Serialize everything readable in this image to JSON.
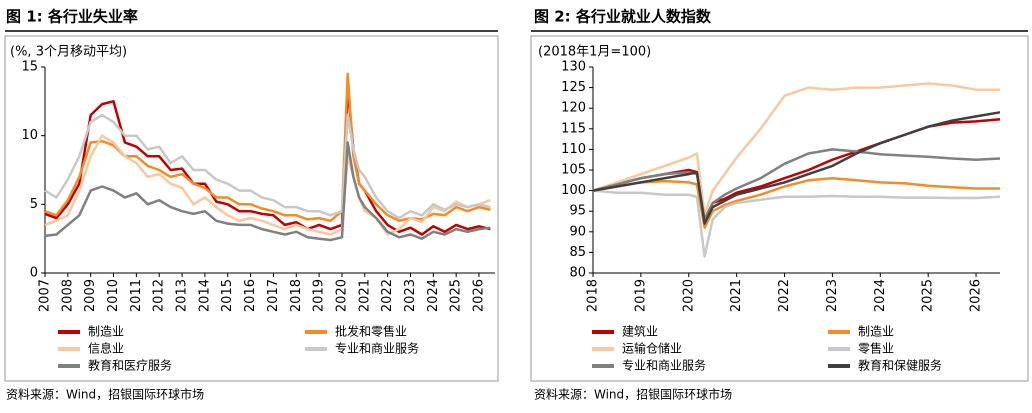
{
  "chart_data": [
    {
      "type": "line",
      "title": "图 1: 各行业失业率",
      "subtitle": "(%, 3个月移动平均)",
      "source": "资料来源：Wind，招银国际环球市场",
      "x": [
        2007,
        2007.5,
        2008,
        2008.5,
        2009,
        2009.5,
        2010,
        2010.5,
        2011,
        2011.5,
        2012,
        2012.5,
        2013,
        2013.5,
        2014,
        2014.5,
        2015,
        2015.5,
        2016,
        2016.5,
        2017,
        2017.5,
        2018,
        2018.5,
        2019,
        2019.5,
        2020,
        2020.25,
        2020.5,
        2020.75,
        2021,
        2021.5,
        2022,
        2022.5,
        2023,
        2023.5,
        2024,
        2024.5,
        2025,
        2025.5,
        2026,
        2026.5
      ],
      "xlim": [
        2007,
        2026.7
      ],
      "xticks": [
        2007,
        2008,
        2009,
        2010,
        2011,
        2012,
        2013,
        2014,
        2015,
        2016,
        2017,
        2018,
        2019,
        2020,
        2021,
        2022,
        2023,
        2024,
        2025,
        2026
      ],
      "ylim": [
        0,
        15
      ],
      "yticks": [
        0,
        5,
        10,
        15
      ],
      "series": [
        {
          "name": "制造业",
          "color": "#c00000",
          "values": [
            4.3,
            4.0,
            5.0,
            6.5,
            11.5,
            12.3,
            12.5,
            9.5,
            9.2,
            8.5,
            8.5,
            7.5,
            7.6,
            6.5,
            6.5,
            5.2,
            5.0,
            4.5,
            4.5,
            4.3,
            4.2,
            3.5,
            3.7,
            3.2,
            3.5,
            3.2,
            3.5,
            13.5,
            9,
            6.5,
            6.0,
            4.5,
            3.5,
            3.0,
            3.3,
            2.8,
            3.4,
            3.0,
            3.5,
            3.2,
            3.4,
            3.2
          ]
        },
        {
          "name": "批发和零售业",
          "color": "#f28c28",
          "values": [
            4.5,
            4.2,
            5.3,
            7,
            9.5,
            9.6,
            9.3,
            8.5,
            8.5,
            7.8,
            7.5,
            7,
            7.2,
            6.5,
            6.2,
            5.5,
            5.5,
            5,
            5,
            4.7,
            4.5,
            4.2,
            4.2,
            3.9,
            4,
            3.8,
            4.5,
            14.5,
            8.5,
            6.5,
            6,
            5,
            4.2,
            3.8,
            4,
            3.9,
            4.3,
            4.2,
            4.8,
            4.5,
            4.8,
            4.6
          ]
        },
        {
          "name": "信息业",
          "color": "#f8c8a0",
          "values": [
            3.5,
            3.8,
            4.2,
            6,
            8.5,
            10,
            9.5,
            8.5,
            8,
            7,
            7.2,
            6.5,
            6.2,
            5,
            5.5,
            4.8,
            4.2,
            3.8,
            4,
            3.8,
            3.5,
            3.2,
            3.5,
            3.2,
            3,
            2.8,
            3.2,
            8.5,
            7,
            5.5,
            4.5,
            4.0,
            2.8,
            3.2,
            4,
            3.7,
            4.8,
            4.5,
            5.2,
            4.8,
            5,
            5.3
          ]
        },
        {
          "name": "专业和商业服务",
          "color": "#c8c8c8",
          "values": [
            6,
            5.5,
            6.8,
            8.5,
            11,
            11.5,
            11,
            10,
            10,
            9,
            9.2,
            8,
            8.5,
            7.5,
            7.5,
            6.8,
            6.5,
            6,
            6,
            5.5,
            5.3,
            4.8,
            4.8,
            4.5,
            4.5,
            4.2,
            4.5,
            11.5,
            9,
            7.5,
            7,
            5.5,
            4.5,
            4.0,
            4.5,
            4.2,
            5,
            4.6,
            5,
            4.8,
            5,
            4.8
          ]
        },
        {
          "name": "教育和医疗服务",
          "color": "#808080",
          "values": [
            2.7,
            2.8,
            3.5,
            4.2,
            6,
            6.3,
            6,
            5.5,
            5.8,
            5,
            5.3,
            4.8,
            4.5,
            4.3,
            4.5,
            3.8,
            3.6,
            3.5,
            3.5,
            3.2,
            3,
            2.8,
            3,
            2.6,
            2.5,
            2.4,
            2.6,
            9.5,
            7,
            5.5,
            4.8,
            4,
            3,
            2.6,
            2.8,
            2.5,
            3,
            2.8,
            3.2,
            3,
            3.2,
            3.3
          ]
        }
      ]
    },
    {
      "type": "line",
      "title": "图 2: 各行业就业人数指数",
      "subtitle": "(2018年1月=100)",
      "source": "资料来源：Wind，招银国际环球市场",
      "x": [
        2018,
        2018.5,
        2019,
        2019.5,
        2020,
        2020.17,
        2020.33,
        2020.5,
        2020.75,
        2021,
        2021.5,
        2022,
        2022.5,
        2023,
        2023.5,
        2024,
        2024.5,
        2025,
        2025.5,
        2026,
        2026.5
      ],
      "xlim": [
        2018,
        2026.5
      ],
      "xticks": [
        2018,
        2019,
        2020,
        2021,
        2022,
        2023,
        2024,
        2025,
        2026
      ],
      "ylim": [
        80,
        130
      ],
      "yticks": [
        80,
        85,
        90,
        95,
        100,
        105,
        110,
        115,
        120,
        125,
        130
      ],
      "series": [
        {
          "name": "建筑业",
          "color": "#c00000",
          "values": [
            100,
            101.5,
            103,
            104,
            105,
            104.5,
            93,
            97,
            98,
            99.5,
            101,
            103,
            105,
            107.5,
            109.5,
            111.5,
            113.5,
            115.5,
            116.5,
            116.8,
            117.3
          ]
        },
        {
          "name": "制造业",
          "color": "#f28c28",
          "values": [
            100,
            101,
            102,
            102.3,
            102,
            101.5,
            91,
            95,
            96.5,
            97.5,
            99,
            101,
            102.5,
            103,
            102.5,
            102,
            101.8,
            101.2,
            100.8,
            100.5,
            100.5
          ]
        },
        {
          "name": "运输仓储业",
          "color": "#f8c8a0",
          "values": [
            100,
            102,
            104,
            106,
            108,
            109,
            94,
            100,
            104,
            108,
            115,
            123,
            125,
            124.5,
            125,
            125,
            125.5,
            126,
            125.5,
            124.5,
            124.5
          ]
        },
        {
          "name": "零售业",
          "color": "#c8c8c8",
          "values": [
            100,
            99.5,
            99.5,
            99,
            99,
            98.5,
            84,
            93,
            96,
            97,
            97.8,
            98.5,
            98.5,
            98.7,
            98.5,
            98.5,
            98.3,
            98.3,
            98.2,
            98.2,
            98.5
          ]
        },
        {
          "name": "专业和商业服务",
          "color": "#808080",
          "values": [
            100,
            101.5,
            103,
            104,
            104.5,
            104,
            93,
            97,
            99,
            100.5,
            103,
            106.5,
            109,
            110,
            109.5,
            108.8,
            108.5,
            108.2,
            107.8,
            107.5,
            107.8
          ]
        },
        {
          "name": "教育和保健服务",
          "color": "#404040",
          "values": [
            100,
            101,
            102,
            103,
            104,
            104.5,
            92,
            96,
            97.5,
            99,
            100.5,
            102,
            104,
            106,
            109,
            111.5,
            113.5,
            115.5,
            117,
            118,
            119
          ]
        }
      ]
    }
  ]
}
